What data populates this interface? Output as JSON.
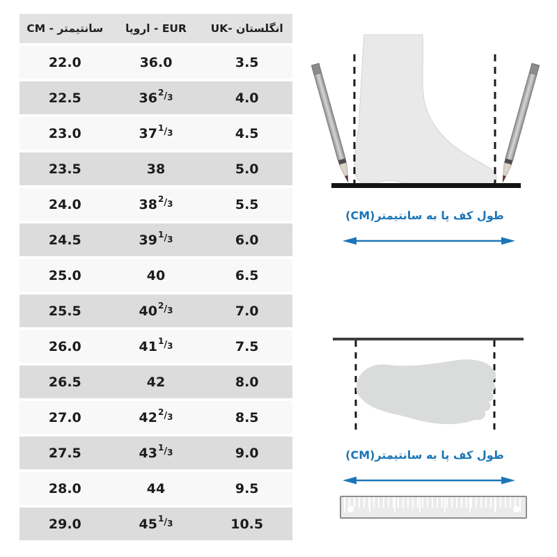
{
  "page": {
    "background": "#ffffff"
  },
  "colors": {
    "accent_blue": "#1b76b8",
    "header_gray": "#e2e2e2",
    "row_light": "#f8f8f8",
    "row_gray": "#dcdcdc"
  },
  "table": {
    "fraction_slash": "/",
    "headers": [
      {
        "id": "cm",
        "latin": "CM",
        "sep": " - ",
        "persian": "سانتیمتر",
        "latin_first": true
      },
      {
        "id": "eur",
        "latin": "EUR",
        "sep": " - ",
        "persian": "اروپا",
        "latin_first": false
      },
      {
        "id": "uk",
        "latin": "UK",
        "sep": "- ",
        "persian": "انگلستان",
        "latin_first": true
      }
    ],
    "rows": [
      {
        "cm": "22.0",
        "eur": {
          "whole": "36.0"
        },
        "uk": "3.5"
      },
      {
        "cm": "22.5",
        "eur": {
          "whole": "36",
          "num": "2",
          "den": "3"
        },
        "uk": "4.0"
      },
      {
        "cm": "23.0",
        "eur": {
          "whole": "37",
          "num": "1",
          "den": "3"
        },
        "uk": "4.5"
      },
      {
        "cm": "23.5",
        "eur": {
          "whole": "38"
        },
        "uk": "5.0"
      },
      {
        "cm": "24.0",
        "eur": {
          "whole": "38",
          "num": "2",
          "den": "3"
        },
        "uk": "5.5"
      },
      {
        "cm": "24.5",
        "eur": {
          "whole": "39",
          "num": "1",
          "den": "3"
        },
        "uk": "6.0"
      },
      {
        "cm": "25.0",
        "eur": {
          "whole": "40"
        },
        "uk": "6.5"
      },
      {
        "cm": "25.5",
        "eur": {
          "whole": "40",
          "num": "2",
          "den": "3"
        },
        "uk": "7.0"
      },
      {
        "cm": "26.0",
        "eur": {
          "whole": "41",
          "num": "1",
          "den": "3"
        },
        "uk": "7.5"
      },
      {
        "cm": "26.5",
        "eur": {
          "whole": "42"
        },
        "uk": "8.0"
      },
      {
        "cm": "27.0",
        "eur": {
          "whole": "42",
          "num": "2",
          "den": "3"
        },
        "uk": "8.5"
      },
      {
        "cm": "27.5",
        "eur": {
          "whole": "43",
          "num": "1",
          "den": "3"
        },
        "uk": "9.0"
      },
      {
        "cm": "28.0",
        "eur": {
          "whole": "44"
        },
        "uk": "9.5"
      },
      {
        "cm": "29.0",
        "eur": {
          "whole": "45",
          "num": "1",
          "den": "3"
        },
        "uk": "10.5"
      }
    ]
  },
  "figures": {
    "top_caption": "طول کف پا به سانتیمتر(CM)",
    "bottom_caption": "طول کف پا به سانتیمتر(CM)"
  },
  "chart_data": {
    "type": "table",
    "title": "",
    "columns": [
      "CM - سانتیمتر",
      "EUR - اروپا",
      "UK - انگلستان"
    ],
    "rows": [
      [
        "22.0",
        "36.0",
        "3.5"
      ],
      [
        "22.5",
        "36 2/3",
        "4.0"
      ],
      [
        "23.0",
        "37 1/3",
        "4.5"
      ],
      [
        "23.5",
        "38",
        "5.0"
      ],
      [
        "24.0",
        "38 2/3",
        "5.5"
      ],
      [
        "24.5",
        "39 1/3",
        "6.0"
      ],
      [
        "25.0",
        "40",
        "6.5"
      ],
      [
        "25.5",
        "40 2/3",
        "7.0"
      ],
      [
        "26.0",
        "41 1/3",
        "7.5"
      ],
      [
        "26.5",
        "42",
        "8.0"
      ],
      [
        "27.0",
        "42 2/3",
        "8.5"
      ],
      [
        "27.5",
        "43 1/3",
        "9.0"
      ],
      [
        "28.0",
        "44",
        "9.5"
      ],
      [
        "29.0",
        "45 1/3",
        "10.5"
      ]
    ]
  }
}
